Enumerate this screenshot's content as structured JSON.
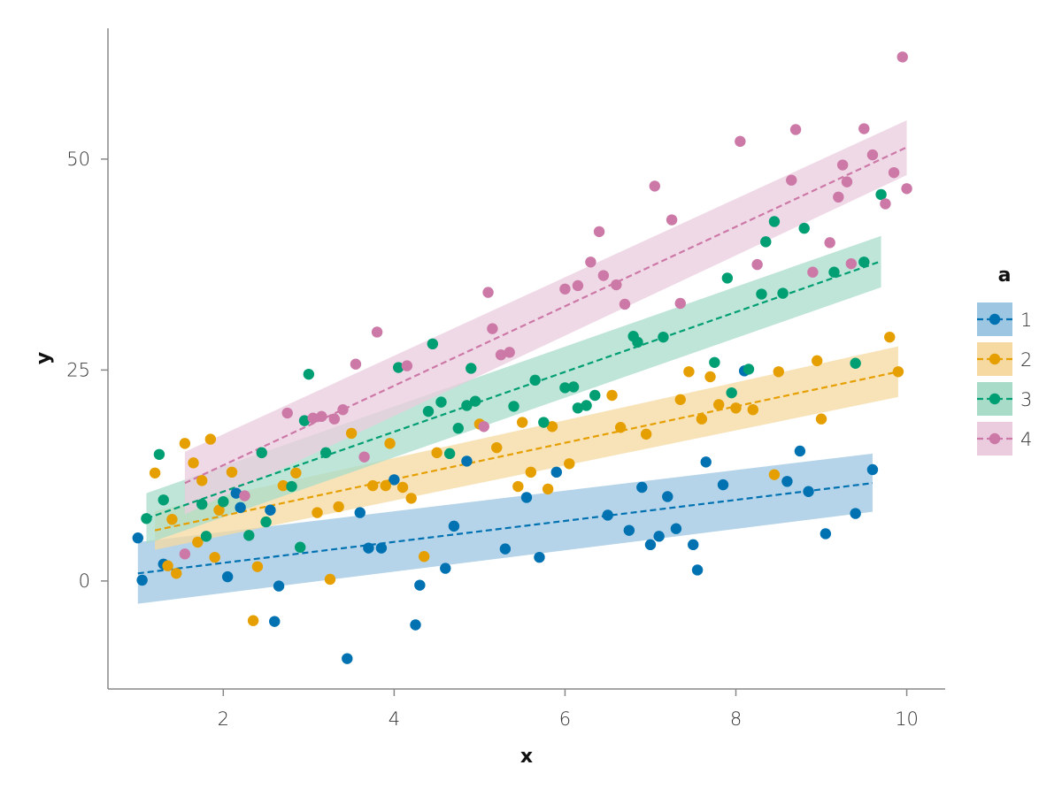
{
  "chart_data": {
    "type": "scatter",
    "xlabel": "x",
    "ylabel": "y",
    "xlim": [
      0.65,
      10.45
    ],
    "ylim": [
      -12.8,
      65.5
    ],
    "xticks": [
      2,
      4,
      6,
      8,
      10
    ],
    "yticks": [
      0,
      25,
      50
    ],
    "grid": false,
    "legend": {
      "title": "a",
      "placement": "right"
    },
    "series": [
      {
        "name": "1",
        "color": "#0072B2",
        "band_color": "#9CC6E2",
        "fit": {
          "x_start": 1.0,
          "x_end": 9.6,
          "y_start": 0.9,
          "y_end": 11.6
        },
        "band": {
          "lower_start": -2.7,
          "upper_start": 4.6,
          "lower_end": 8.2,
          "upper_end": 15.1
        },
        "points": [
          [
            1.0,
            5.1
          ],
          [
            1.05,
            0.1
          ],
          [
            1.3,
            2.0
          ],
          [
            2.05,
            0.5
          ],
          [
            2.15,
            10.4
          ],
          [
            2.2,
            8.7
          ],
          [
            2.55,
            8.4
          ],
          [
            2.6,
            -4.8
          ],
          [
            2.65,
            -0.6
          ],
          [
            3.45,
            -9.2
          ],
          [
            3.6,
            8.1
          ],
          [
            3.7,
            3.9
          ],
          [
            3.85,
            3.9
          ],
          [
            4.0,
            12.0
          ],
          [
            4.25,
            -5.2
          ],
          [
            4.3,
            -0.5
          ],
          [
            4.6,
            1.5
          ],
          [
            4.7,
            6.5
          ],
          [
            4.85,
            14.2
          ],
          [
            5.3,
            3.8
          ],
          [
            5.55,
            9.9
          ],
          [
            5.7,
            2.8
          ],
          [
            5.9,
            12.9
          ],
          [
            6.5,
            7.8
          ],
          [
            6.75,
            6.0
          ],
          [
            6.9,
            11.1
          ],
          [
            7.0,
            4.3
          ],
          [
            7.1,
            5.3
          ],
          [
            7.2,
            10.0
          ],
          [
            7.3,
            6.2
          ],
          [
            7.5,
            4.3
          ],
          [
            7.55,
            1.3
          ],
          [
            7.65,
            14.1
          ],
          [
            7.85,
            11.4
          ],
          [
            8.1,
            24.9
          ],
          [
            8.6,
            11.8
          ],
          [
            8.75,
            15.4
          ],
          [
            8.85,
            10.6
          ],
          [
            9.05,
            5.6
          ],
          [
            9.4,
            8.0
          ],
          [
            9.6,
            13.2
          ]
        ]
      },
      {
        "name": "2",
        "color": "#E69F00",
        "band_color": "#F5D9A0",
        "fit": {
          "x_start": 1.2,
          "x_end": 9.9,
          "y_start": 6.0,
          "y_end": 24.8
        },
        "band": {
          "lower_start": 3.7,
          "upper_start": 8.3,
          "lower_end": 21.8,
          "upper_end": 27.8
        },
        "points": [
          [
            1.2,
            12.8
          ],
          [
            1.35,
            1.8
          ],
          [
            1.4,
            7.3
          ],
          [
            1.45,
            0.9
          ],
          [
            1.55,
            16.3
          ],
          [
            1.65,
            14.0
          ],
          [
            1.7,
            4.6
          ],
          [
            1.75,
            11.9
          ],
          [
            1.85,
            16.8
          ],
          [
            1.95,
            8.4
          ],
          [
            1.9,
            2.8
          ],
          [
            2.1,
            12.9
          ],
          [
            2.35,
            -4.7
          ],
          [
            2.4,
            1.7
          ],
          [
            2.7,
            11.3
          ],
          [
            2.85,
            12.8
          ],
          [
            3.1,
            8.1
          ],
          [
            3.25,
            0.2
          ],
          [
            3.35,
            8.8
          ],
          [
            3.5,
            17.5
          ],
          [
            3.75,
            11.3
          ],
          [
            3.9,
            11.3
          ],
          [
            3.95,
            16.3
          ],
          [
            4.1,
            11.1
          ],
          [
            4.2,
            9.8
          ],
          [
            4.35,
            2.9
          ],
          [
            4.5,
            15.2
          ],
          [
            5.0,
            18.6
          ],
          [
            5.2,
            15.8
          ],
          [
            5.45,
            11.2
          ],
          [
            5.5,
            18.8
          ],
          [
            5.6,
            12.9
          ],
          [
            5.8,
            10.9
          ],
          [
            5.85,
            18.3
          ],
          [
            6.05,
            13.9
          ],
          [
            6.55,
            22.0
          ],
          [
            6.65,
            18.2
          ],
          [
            6.95,
            17.4
          ],
          [
            7.35,
            21.5
          ],
          [
            7.45,
            24.8
          ],
          [
            7.6,
            19.2
          ],
          [
            7.7,
            24.2
          ],
          [
            7.8,
            20.9
          ],
          [
            8.0,
            20.5
          ],
          [
            8.2,
            20.3
          ],
          [
            8.45,
            12.6
          ],
          [
            8.5,
            24.8
          ],
          [
            8.95,
            26.1
          ],
          [
            9.0,
            19.2
          ],
          [
            9.8,
            28.9
          ],
          [
            9.9,
            24.8
          ]
        ]
      },
      {
        "name": "3",
        "color": "#009E73",
        "band_color": "#A8DCC9",
        "fit": {
          "x_start": 1.1,
          "x_end": 9.7,
          "y_start": 7.4,
          "y_end": 37.9
        },
        "band": {
          "lower_start": 4.4,
          "upper_start": 10.4,
          "lower_end": 34.8,
          "upper_end": 40.9
        },
        "points": [
          [
            1.1,
            7.4
          ],
          [
            1.25,
            15.0
          ],
          [
            1.3,
            9.6
          ],
          [
            1.75,
            9.1
          ],
          [
            1.8,
            5.3
          ],
          [
            2.0,
            9.4
          ],
          [
            2.3,
            5.4
          ],
          [
            2.45,
            15.2
          ],
          [
            2.5,
            7.0
          ],
          [
            2.8,
            11.2
          ],
          [
            2.9,
            4.0
          ],
          [
            2.95,
            19.0
          ],
          [
            3.0,
            24.5
          ],
          [
            3.2,
            15.2
          ],
          [
            4.05,
            25.3
          ],
          [
            4.4,
            20.1
          ],
          [
            4.45,
            28.1
          ],
          [
            4.55,
            21.2
          ],
          [
            4.65,
            15.1
          ],
          [
            4.75,
            18.1
          ],
          [
            4.85,
            20.8
          ],
          [
            4.9,
            25.2
          ],
          [
            4.95,
            21.3
          ],
          [
            5.4,
            20.7
          ],
          [
            5.65,
            23.8
          ],
          [
            5.75,
            18.8
          ],
          [
            6.0,
            22.9
          ],
          [
            6.15,
            20.5
          ],
          [
            6.1,
            23.0
          ],
          [
            6.25,
            20.8
          ],
          [
            6.35,
            22.0
          ],
          [
            6.8,
            29.0
          ],
          [
            6.85,
            28.3
          ],
          [
            7.15,
            28.9
          ],
          [
            7.75,
            25.9
          ],
          [
            7.9,
            35.9
          ],
          [
            7.95,
            22.3
          ],
          [
            8.15,
            25.1
          ],
          [
            8.3,
            34.0
          ],
          [
            8.35,
            40.2
          ],
          [
            8.45,
            42.6
          ],
          [
            8.55,
            34.1
          ],
          [
            8.8,
            41.8
          ],
          [
            9.15,
            36.6
          ],
          [
            9.4,
            25.8
          ],
          [
            9.5,
            37.8
          ],
          [
            9.7,
            45.8
          ]
        ]
      },
      {
        "name": "4",
        "color": "#CC79A7",
        "band_color": "#EBCCDE",
        "fit": {
          "x_start": 1.55,
          "x_end": 10.0,
          "y_start": 11.6,
          "y_end": 51.4
        },
        "band": {
          "lower_start": 7.9,
          "upper_start": 15.3,
          "lower_end": 48.1,
          "upper_end": 54.6
        },
        "points": [
          [
            1.55,
            3.2
          ],
          [
            2.25,
            10.1
          ],
          [
            2.75,
            19.9
          ],
          [
            3.05,
            19.3
          ],
          [
            3.15,
            19.5
          ],
          [
            3.3,
            19.2
          ],
          [
            3.4,
            20.3
          ],
          [
            3.55,
            25.7
          ],
          [
            3.65,
            14.7
          ],
          [
            3.8,
            29.5
          ],
          [
            4.15,
            25.5
          ],
          [
            5.05,
            18.3
          ],
          [
            5.1,
            34.2
          ],
          [
            5.15,
            29.9
          ],
          [
            5.25,
            26.8
          ],
          [
            5.35,
            27.1
          ],
          [
            6.0,
            34.6
          ],
          [
            6.15,
            35.0
          ],
          [
            6.3,
            37.8
          ],
          [
            6.4,
            41.4
          ],
          [
            6.45,
            36.2
          ],
          [
            6.6,
            35.1
          ],
          [
            6.7,
            32.8
          ],
          [
            7.05,
            46.8
          ],
          [
            7.25,
            42.8
          ],
          [
            7.35,
            32.9
          ],
          [
            8.05,
            52.1
          ],
          [
            8.25,
            37.5
          ],
          [
            8.65,
            47.5
          ],
          [
            8.7,
            53.5
          ],
          [
            8.9,
            36.6
          ],
          [
            9.1,
            40.1
          ],
          [
            9.2,
            45.5
          ],
          [
            9.25,
            49.3
          ],
          [
            9.3,
            47.3
          ],
          [
            9.35,
            37.6
          ],
          [
            9.5,
            53.6
          ],
          [
            9.6,
            50.5
          ],
          [
            9.75,
            44.7
          ],
          [
            9.85,
            48.4
          ],
          [
            9.95,
            62.1
          ],
          [
            10.0,
            46.5
          ]
        ]
      }
    ]
  }
}
